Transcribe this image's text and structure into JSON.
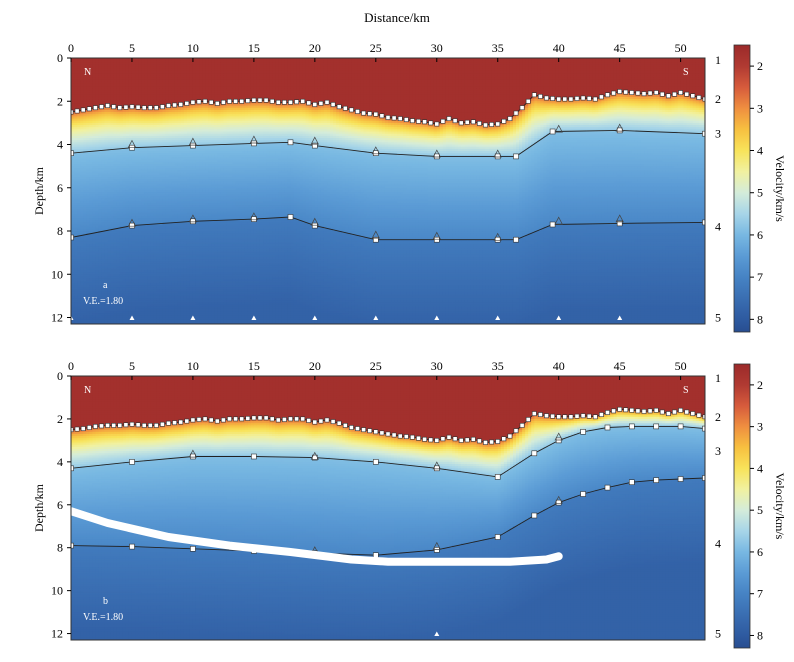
{
  "chart_data": [
    {
      "type": "heatmap",
      "panel_label": "a",
      "top_xlabel": "Distance/km",
      "ylabel": "Depth/km",
      "xlim": [
        0,
        52
      ],
      "ylim": [
        0,
        12.3
      ],
      "xticks": [
        0,
        5,
        10,
        15,
        20,
        25,
        30,
        35,
        40,
        45,
        50
      ],
      "yticks": [
        0,
        2,
        4,
        6,
        8,
        10,
        12
      ],
      "corner_left": "N",
      "corner_right": "S",
      "ve_text": "V.E.=1.80",
      "layer_numbers": [
        {
          "label": "1",
          "depth": 0.1
        },
        {
          "label": "2",
          "depth": 1.9
        },
        {
          "label": "3",
          "depth": 3.5
        },
        {
          "label": "4",
          "depth": 7.8
        },
        {
          "label": "5",
          "depth": 12.0
        }
      ],
      "interfaces": [
        {
          "x": [
            0,
            1,
            2,
            3,
            4,
            5,
            6,
            7,
            8,
            9,
            10,
            11,
            12,
            13,
            14,
            15,
            16,
            17,
            18,
            19,
            20,
            21,
            22,
            23,
            24,
            25,
            26,
            27,
            28,
            29,
            30,
            31,
            32,
            33,
            34,
            35,
            36,
            37,
            38,
            39,
            40,
            41,
            42,
            43,
            44,
            45,
            46,
            47,
            48,
            49,
            50,
            51,
            52
          ],
          "depth": [
            2.5,
            2.4,
            2.3,
            2.2,
            2.3,
            2.25,
            2.3,
            2.3,
            2.2,
            2.15,
            2.05,
            2.0,
            2.1,
            2.0,
            2.0,
            1.95,
            1.95,
            2.05,
            2.05,
            2.0,
            2.15,
            2.05,
            2.25,
            2.4,
            2.55,
            2.6,
            2.75,
            2.8,
            2.9,
            2.95,
            3.05,
            2.8,
            3.0,
            2.95,
            3.1,
            3.05,
            2.8,
            2.3,
            1.7,
            1.85,
            1.9,
            1.9,
            1.85,
            1.9,
            1.7,
            1.55,
            1.6,
            1.65,
            1.6,
            1.75,
            1.6,
            1.75,
            1.9
          ]
        },
        {
          "x": [
            0,
            5,
            10,
            15,
            18,
            20,
            25,
            30,
            35,
            36.5,
            39.5,
            45,
            52
          ],
          "depth": [
            4.4,
            4.15,
            4.05,
            3.95,
            3.9,
            4.05,
            4.4,
            4.55,
            4.55,
            4.55,
            3.4,
            3.35,
            3.5
          ]
        },
        {
          "x": [
            0,
            5,
            10,
            15,
            18,
            20,
            25,
            30,
            35,
            36.5,
            39.5,
            45,
            52
          ],
          "depth": [
            8.3,
            7.75,
            7.55,
            7.45,
            7.35,
            7.75,
            8.4,
            8.4,
            8.4,
            8.4,
            7.7,
            7.65,
            7.6
          ]
        }
      ],
      "triangles": [
        {
          "x": 5,
          "depth": 4.0
        },
        {
          "x": 10,
          "depth": 3.9
        },
        {
          "x": 15,
          "depth": 3.8
        },
        {
          "x": 20,
          "depth": 3.85
        },
        {
          "x": 25,
          "depth": 4.3
        },
        {
          "x": 30,
          "depth": 4.45
        },
        {
          "x": 35,
          "depth": 4.45
        },
        {
          "x": 40,
          "depth": 3.3
        },
        {
          "x": 45,
          "depth": 3.25
        },
        {
          "x": 5,
          "depth": 7.65
        },
        {
          "x": 10,
          "depth": 7.45
        },
        {
          "x": 15,
          "depth": 7.35
        },
        {
          "x": 20,
          "depth": 7.6
        },
        {
          "x": 25,
          "depth": 8.2
        },
        {
          "x": 30,
          "depth": 8.25
        },
        {
          "x": 35,
          "depth": 8.3
        },
        {
          "x": 40,
          "depth": 7.55
        },
        {
          "x": 45,
          "depth": 7.45
        }
      ],
      "bottom_triangles": [
        0,
        5,
        10,
        15,
        20,
        25,
        30,
        35,
        40,
        45
      ],
      "white_path": null
    },
    {
      "type": "heatmap",
      "panel_label": "b",
      "ylabel": "Depth/km",
      "xlim": [
        0,
        52
      ],
      "ylim": [
        0,
        12.3
      ],
      "xticks": [
        0,
        5,
        10,
        15,
        20,
        25,
        30,
        35,
        40,
        45,
        50
      ],
      "yticks": [
        0,
        2,
        4,
        6,
        8,
        10,
        12
      ],
      "corner_left": "N",
      "corner_right": "S",
      "ve_text": "V.E.=1.80",
      "layer_numbers": [
        {
          "label": "1",
          "depth": 0.1
        },
        {
          "label": "2",
          "depth": 1.9
        },
        {
          "label": "3",
          "depth": 3.5
        },
        {
          "label": "4",
          "depth": 7.8
        },
        {
          "label": "5",
          "depth": 12.0
        }
      ],
      "interfaces": [
        {
          "x": [
            0,
            1,
            2,
            3,
            4,
            5,
            6,
            7,
            8,
            9,
            10,
            11,
            12,
            13,
            14,
            15,
            16,
            17,
            18,
            19,
            20,
            21,
            22,
            23,
            24,
            25,
            26,
            27,
            28,
            29,
            30,
            31,
            32,
            33,
            34,
            35,
            36,
            37,
            38,
            39,
            40,
            41,
            42,
            43,
            44,
            45,
            46,
            47,
            48,
            49,
            50,
            51,
            52
          ],
          "depth": [
            2.5,
            2.45,
            2.35,
            2.3,
            2.3,
            2.25,
            2.3,
            2.3,
            2.2,
            2.15,
            2.05,
            2.0,
            2.1,
            2.0,
            2.0,
            1.95,
            1.95,
            2.05,
            2.0,
            2.0,
            2.15,
            2.05,
            2.2,
            2.4,
            2.5,
            2.6,
            2.7,
            2.8,
            2.85,
            2.95,
            3.0,
            2.85,
            3.0,
            2.95,
            3.1,
            3.05,
            2.8,
            2.3,
            1.75,
            1.85,
            1.9,
            1.9,
            1.85,
            1.9,
            1.7,
            1.55,
            1.6,
            1.65,
            1.6,
            1.75,
            1.6,
            1.75,
            1.9
          ]
        },
        {
          "x": [
            0,
            5,
            10,
            15,
            20,
            25,
            30,
            35,
            38,
            40,
            42,
            44,
            46,
            48,
            50,
            52
          ],
          "depth": [
            4.3,
            4.0,
            3.75,
            3.75,
            3.8,
            4.0,
            4.3,
            4.7,
            3.6,
            3.0,
            2.6,
            2.4,
            2.35,
            2.35,
            2.35,
            2.45
          ]
        },
        {
          "x": [
            0,
            5,
            10,
            15,
            20,
            25,
            30,
            35,
            38,
            40,
            42,
            44,
            46,
            48,
            50,
            52
          ],
          "depth": [
            7.9,
            7.95,
            8.05,
            8.15,
            8.25,
            8.35,
            8.1,
            7.5,
            6.5,
            5.9,
            5.5,
            5.2,
            4.95,
            4.85,
            4.8,
            4.75
          ]
        }
      ],
      "triangles": [
        {
          "x": 10,
          "depth": 3.65
        },
        {
          "x": 20,
          "depth": 3.75
        },
        {
          "x": 30,
          "depth": 4.2
        },
        {
          "x": 40,
          "depth": 2.85
        },
        {
          "x": 20,
          "depth": 8.15
        },
        {
          "x": 30,
          "depth": 7.95
        },
        {
          "x": 40,
          "depth": 5.8
        }
      ],
      "bottom_triangles": [
        30
      ],
      "white_path": {
        "x": [
          0,
          3,
          8,
          13,
          18,
          23,
          26,
          28,
          32,
          36,
          39,
          40
        ],
        "depth": [
          6.3,
          6.85,
          7.5,
          7.9,
          8.2,
          8.55,
          8.65,
          8.65,
          8.65,
          8.65,
          8.55,
          8.4
        ]
      }
    }
  ],
  "colorbar": {
    "label": "Velocity/km/s",
    "min": 1.5,
    "max": 8.3,
    "ticks": [
      2,
      3,
      4,
      5,
      6,
      7,
      8
    ],
    "stops": [
      {
        "v": 1.5,
        "color": "#9b2a2a"
      },
      {
        "v": 2.0,
        "color": "#b03a32"
      },
      {
        "v": 2.5,
        "color": "#d65b3c"
      },
      {
        "v": 3.0,
        "color": "#ef8f40"
      },
      {
        "v": 3.5,
        "color": "#f7c040"
      },
      {
        "v": 4.0,
        "color": "#f8e35a"
      },
      {
        "v": 4.5,
        "color": "#f1f1a0"
      },
      {
        "v": 5.0,
        "color": "#d4ecda"
      },
      {
        "v": 5.5,
        "color": "#a7d5e8"
      },
      {
        "v": 6.0,
        "color": "#78b8e2"
      },
      {
        "v": 6.5,
        "color": "#5b9bd5"
      },
      {
        "v": 7.0,
        "color": "#4683c4"
      },
      {
        "v": 7.5,
        "color": "#3a6eb2"
      },
      {
        "v": 8.0,
        "color": "#2e5aa0"
      },
      {
        "v": 8.3,
        "color": "#284e90"
      }
    ]
  }
}
